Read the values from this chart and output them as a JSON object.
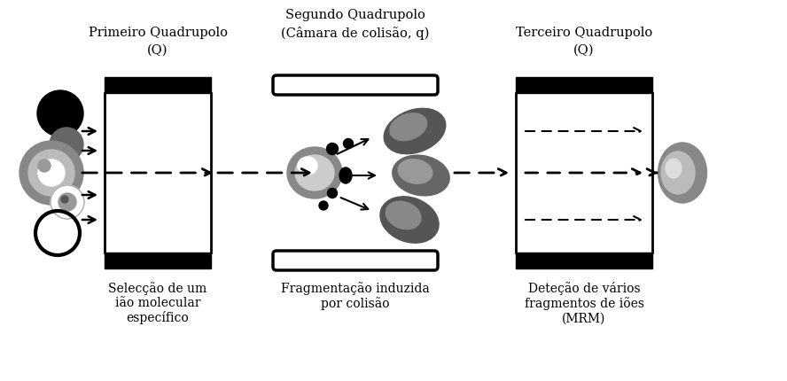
{
  "bg_color": "#ffffff",
  "quad1_label_line1": "Primeiro Quadrupolo",
  "quad1_label_line2": "(Q)",
  "quad2_label_line1": "Segundo Quadrupolo",
  "quad2_label_line2": "(Câmara de colisão, q)",
  "quad3_label_line1": "Terceiro Quadrupolo",
  "quad3_label_line2": "(Q)",
  "sub1": "Selecção de um\nião molecular\nespecífico",
  "sub2": "Fragmentação induzida\npor colisão",
  "sub3": "Deteção de vários\nfragmentos de iões\n(MRM)",
  "font_size_title": 10.5,
  "font_size_sub": 10.0
}
